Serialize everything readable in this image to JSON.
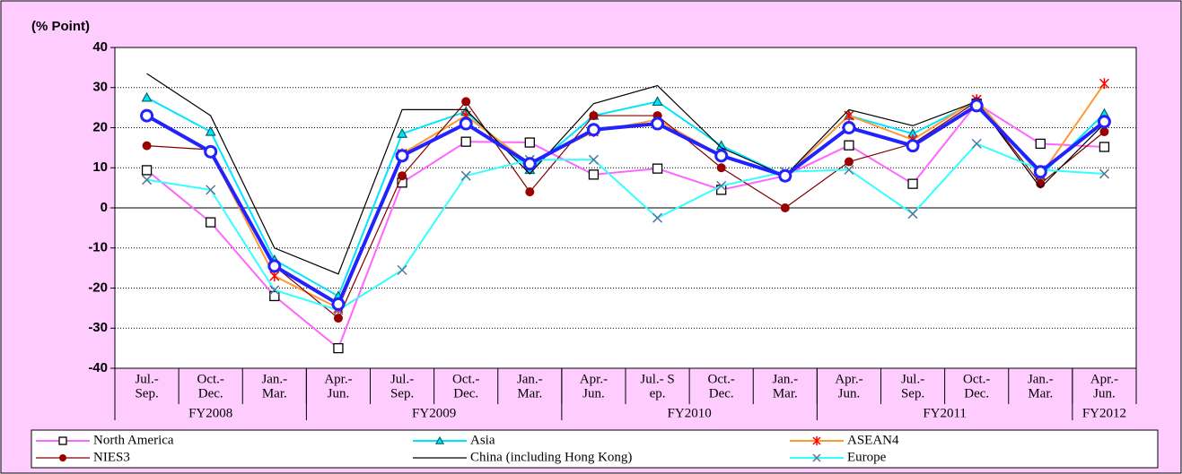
{
  "chart_data": {
    "type": "line",
    "ylabel": "(% Point)",
    "categories": [
      [
        "Jul.-",
        "Sep."
      ],
      [
        "Oct.-",
        "Dec."
      ],
      [
        "Jan.-",
        "Mar."
      ],
      [
        "Apr.-",
        "Jun."
      ],
      [
        "Jul.-",
        "Sep."
      ],
      [
        "Oct.-",
        "Dec."
      ],
      [
        "Jan.-",
        "Mar."
      ],
      [
        "Apr.-",
        "Jun."
      ],
      [
        "Jul.- S",
        "ep."
      ],
      [
        "Oct.-",
        "Dec."
      ],
      [
        "Jan.-",
        "Mar."
      ],
      [
        "Apr.-",
        "Jun."
      ],
      [
        "Jul.-",
        "Sep."
      ],
      [
        "Oct.-",
        "Dec."
      ],
      [
        "Jan.-",
        "Mar."
      ],
      [
        "Apr.-",
        "Jun."
      ]
    ],
    "groups": [
      {
        "label": "FY2008",
        "span": 3
      },
      {
        "label": "FY2009",
        "span": 4
      },
      {
        "label": "FY2010",
        "span": 4
      },
      {
        "label": "FY2011",
        "span": 4
      },
      {
        "label": "FY2012",
        "span": 1
      }
    ],
    "ylim": [
      -40,
      40
    ],
    "yticks": [
      -40,
      -30,
      -20,
      -10,
      0,
      10,
      20,
      30,
      40
    ],
    "grid": true,
    "series": [
      {
        "name": "North America",
        "color": "#ff66ff",
        "marker": "square",
        "marker_color": "#000000",
        "values": [
          9.4,
          -3.6,
          -22,
          -35,
          6.3,
          16.5,
          16.3,
          8.3,
          9.8,
          4.5,
          8,
          15.6,
          6,
          26,
          16,
          15.2
        ]
      },
      {
        "name": "Asia",
        "color": "#00e5ff",
        "marker": "triangle",
        "marker_color": "#006666",
        "values": [
          27.5,
          19,
          -13,
          -22,
          18.5,
          24,
          9.5,
          23,
          26.5,
          15.5,
          8,
          23,
          18.5,
          26.5,
          8,
          23.5
        ]
      },
      {
        "name": "ASEAN4",
        "color": "#ff9933",
        "marker": "star",
        "marker_color": "#ff0000",
        "values": [
          23,
          14,
          -17,
          -25,
          13.5,
          23,
          11,
          19,
          22,
          13,
          8,
          23,
          17,
          27,
          8,
          31
        ]
      },
      {
        "name": "NIES3",
        "color": "#800000",
        "marker": "circle",
        "marker_color": "#990000",
        "values": [
          15.5,
          14.5,
          -14.5,
          -27.5,
          8,
          26.5,
          4,
          23,
          23,
          10,
          0,
          11.5,
          16,
          26.5,
          6,
          19
        ]
      },
      {
        "name": "China (including Hong Kong)",
        "color": "#000000",
        "marker": "none",
        "marker_color": "#000000",
        "values": [
          33.5,
          23,
          -10,
          -16.5,
          24.5,
          24.5,
          8.5,
          26,
          30.5,
          15,
          8,
          24.5,
          20.5,
          26.5,
          5,
          21
        ]
      },
      {
        "name": "Europe",
        "color": "#33ffff",
        "marker": "x",
        "marker_color": "#557799",
        "values": [
          7,
          4.5,
          -20.5,
          -25.5,
          -15.5,
          8,
          12,
          12,
          -2.5,
          5.5,
          9,
          9.5,
          -1.5,
          16,
          9.5,
          8.5
        ]
      },
      {
        "color": "#2222ff",
        "marker": "ring",
        "marker_color": "#2222ff",
        "values": [
          23,
          14,
          -14.5,
          -24,
          13,
          21,
          11,
          19.5,
          21,
          13,
          8,
          20,
          15.5,
          25.5,
          9,
          21.5
        ]
      }
    ]
  }
}
